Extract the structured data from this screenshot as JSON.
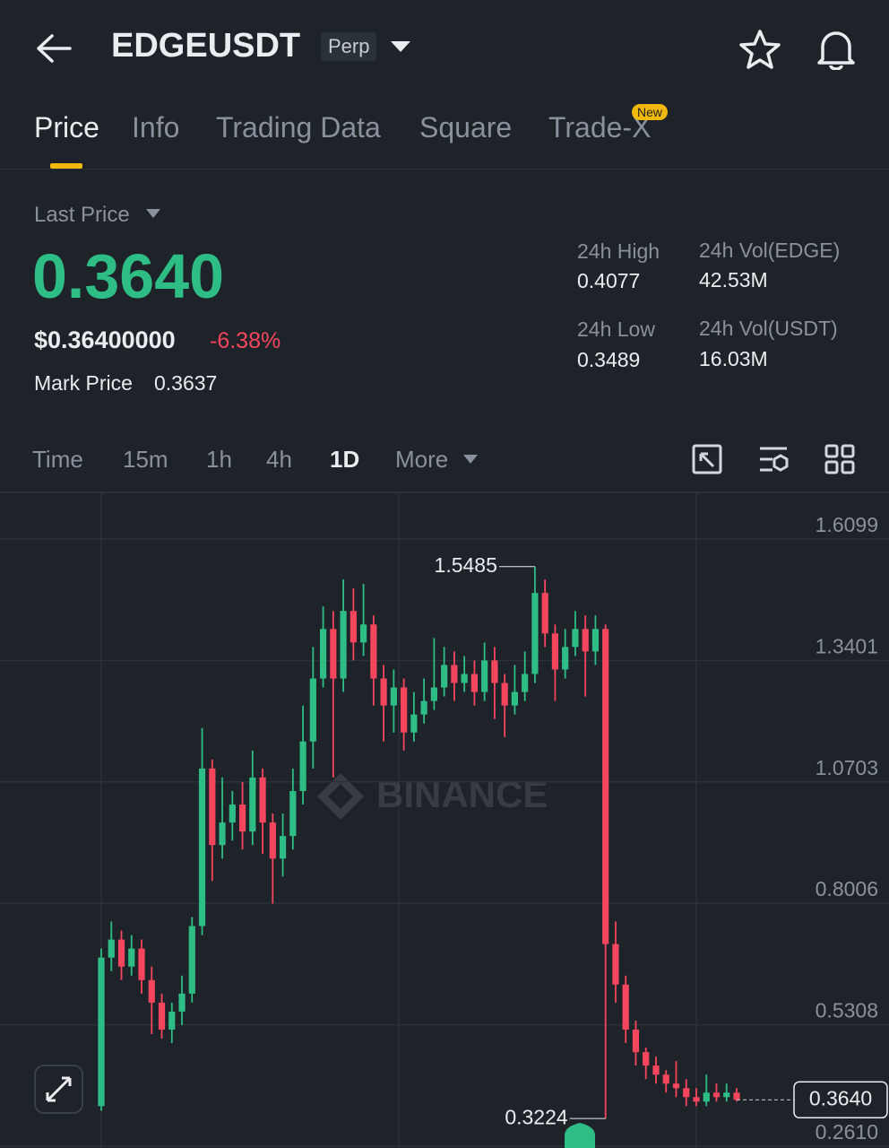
{
  "header": {
    "symbol": "EDGEUSDT",
    "badge": "Perp"
  },
  "tabs": [
    "Price",
    "Info",
    "Trading Data",
    "Square",
    "Trade-X"
  ],
  "new_badge": "New",
  "stats": {
    "last_price_label": "Last Price",
    "last_price": "0.3640",
    "usd_price": "$0.36400000",
    "change": "-6.38%",
    "mark_label": "Mark Price",
    "mark_price": "0.3637",
    "high_label": "24h High",
    "high": "0.4077",
    "low_label": "24h Low",
    "low": "0.3489",
    "vol_base_label": "24h Vol(EDGE)",
    "vol_base": "42.53M",
    "vol_quote_label": "24h Vol(USDT)",
    "vol_quote": "16.03M"
  },
  "intervals": [
    "Time",
    "15m",
    "1h",
    "4h",
    "1D",
    "More"
  ],
  "watermark": "BINANCE",
  "chart_data": {
    "type": "candlestick",
    "ylim": [
      0.261,
      1.7114
    ],
    "yticks": [
      {
        "value": 0.261,
        "label": "0.2610"
      },
      0.5308,
      0.8006,
      1.0703,
      1.3401,
      1.6099
    ],
    "up_color": "#2ebd85",
    "down_color": "#f6465d",
    "high_marker": 1.5485,
    "low_marker": 0.3224,
    "last_price": {
      "value": 0.364,
      "label": "0.3640"
    },
    "open": [
      0.35,
      0.68,
      0.72,
      0.66,
      0.7,
      0.63,
      0.58,
      0.52,
      0.56,
      0.6,
      0.75,
      1.1,
      0.93,
      0.98,
      1.02,
      0.96,
      1.08,
      0.98,
      0.9,
      0.95,
      1.05,
      1.16,
      1.3,
      1.41,
      1.3,
      1.45,
      1.38,
      1.42,
      1.3,
      1.24,
      1.28,
      1.18,
      1.22,
      1.25,
      1.28,
      1.33,
      1.29,
      1.31,
      1.27,
      1.34,
      1.29,
      1.24,
      1.27,
      1.31,
      1.49,
      1.4,
      1.32,
      1.37,
      1.41,
      1.36,
      1.41,
      0.71,
      0.62,
      0.52,
      0.47,
      0.44,
      0.42,
      0.4,
      0.39,
      0.37,
      0.36,
      0.38,
      0.37,
      0.38
    ],
    "high": [
      0.7,
      0.76,
      0.74,
      0.73,
      0.72,
      0.66,
      0.6,
      0.58,
      0.64,
      0.77,
      1.19,
      1.12,
      1.08,
      1.05,
      1.07,
      1.14,
      1.1,
      1.0,
      1.0,
      1.1,
      1.24,
      1.37,
      1.46,
      1.45,
      1.52,
      1.5,
      1.51,
      1.44,
      1.33,
      1.32,
      1.3,
      1.27,
      1.3,
      1.39,
      1.37,
      1.36,
      1.35,
      1.34,
      1.38,
      1.37,
      1.31,
      1.33,
      1.36,
      1.5485,
      1.52,
      1.42,
      1.41,
      1.45,
      1.44,
      1.44,
      1.42,
      0.76,
      0.64,
      0.54,
      0.48,
      0.46,
      0.43,
      0.45,
      0.41,
      0.39,
      0.42,
      0.4,
      0.4,
      0.39
    ],
    "low": [
      0.34,
      0.65,
      0.63,
      0.64,
      0.6,
      0.51,
      0.5,
      0.49,
      0.53,
      0.58,
      0.73,
      0.85,
      0.9,
      0.94,
      0.92,
      0.93,
      0.91,
      0.8,
      0.86,
      0.92,
      1.02,
      1.1,
      1.28,
      1.08,
      1.27,
      1.34,
      1.35,
      1.24,
      1.16,
      1.18,
      1.14,
      1.16,
      1.2,
      1.23,
      1.26,
      1.25,
      1.27,
      1.24,
      1.25,
      1.21,
      1.17,
      1.22,
      1.25,
      1.29,
      1.37,
      1.25,
      1.3,
      1.35,
      1.26,
      1.33,
      0.3224,
      0.58,
      0.49,
      0.44,
      0.41,
      0.4,
      0.38,
      0.37,
      0.35,
      0.35,
      0.35,
      0.36,
      0.36,
      0.36
    ],
    "close": [
      0.68,
      0.72,
      0.66,
      0.7,
      0.63,
      0.58,
      0.52,
      0.56,
      0.6,
      0.75,
      1.1,
      0.93,
      0.98,
      1.02,
      0.96,
      1.08,
      0.98,
      0.9,
      0.95,
      1.05,
      1.16,
      1.3,
      1.41,
      1.3,
      1.45,
      1.38,
      1.42,
      1.3,
      1.24,
      1.28,
      1.18,
      1.22,
      1.25,
      1.28,
      1.33,
      1.29,
      1.31,
      1.27,
      1.34,
      1.29,
      1.24,
      1.27,
      1.31,
      1.49,
      1.4,
      1.32,
      1.37,
      1.41,
      1.36,
      1.41,
      0.71,
      0.62,
      0.52,
      0.47,
      0.44,
      0.42,
      0.4,
      0.39,
      0.37,
      0.36,
      0.38,
      0.37,
      0.38,
      0.364
    ]
  }
}
